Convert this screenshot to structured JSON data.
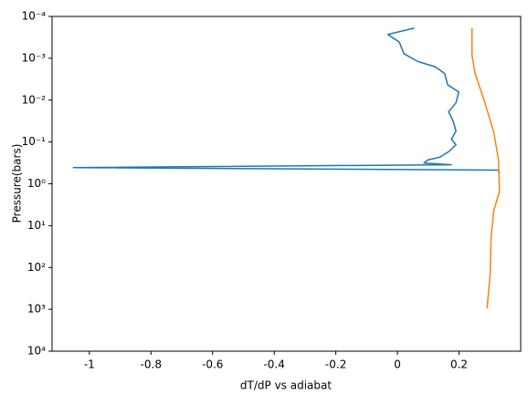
{
  "chart_data": {
    "type": "line",
    "x_label": "dT/dP vs adiabat",
    "y_label": "Pressure(bars)",
    "xlim": [
      -1.121,
      0.4
    ],
    "xticks": [
      -1.0,
      -0.8,
      -0.6,
      -0.4,
      -0.2,
      0.0,
      0.2
    ],
    "ylim": [
      0.0001,
      10000
    ],
    "ylog": true,
    "yinvert": true,
    "yticks": [
      {
        "value": 0.0001,
        "label": "10⁻⁴"
      },
      {
        "value": 0.001,
        "label": "10⁻³"
      },
      {
        "value": 0.01,
        "label": "10⁻²"
      },
      {
        "value": 0.1,
        "label": "10⁻¹"
      },
      {
        "value": 1,
        "label": "10⁰"
      },
      {
        "value": 10,
        "label": "10¹"
      },
      {
        "value": 100,
        "label": "10²"
      },
      {
        "value": 1000,
        "label": "10³"
      },
      {
        "value": 10000,
        "label": "10⁴"
      }
    ],
    "series": [
      {
        "color": "#1f77b4",
        "x": [
          0.055,
          -0.031,
          0.006,
          0.021,
          0.067,
          0.123,
          0.153,
          0.163,
          0.199,
          0.19,
          0.166,
          0.181,
          0.19,
          0.175,
          0.19,
          0.169,
          0.138,
          0.098,
          0.086,
          0.175,
          -1.052,
          0.328,
          0.331
        ],
        "values": [
          0.00019,
          0.00027,
          0.00041,
          0.00078,
          0.0012,
          0.0016,
          0.0023,
          0.0043,
          0.0064,
          0.0116,
          0.019,
          0.032,
          0.055,
          0.086,
          0.116,
          0.165,
          0.23,
          0.27,
          0.32,
          0.35,
          0.41,
          0.47,
          0.58
        ]
      },
      {
        "color": "#ff7f0e",
        "x": [
          0.242,
          0.242,
          0.252,
          0.282,
          0.313,
          0.328,
          0.331,
          0.313,
          0.304,
          0.301,
          0.291
        ],
        "values": [
          0.00019,
          0.00085,
          0.0023,
          0.0105,
          0.06,
          0.27,
          1.57,
          4.3,
          19,
          140,
          950
        ]
      }
    ]
  }
}
